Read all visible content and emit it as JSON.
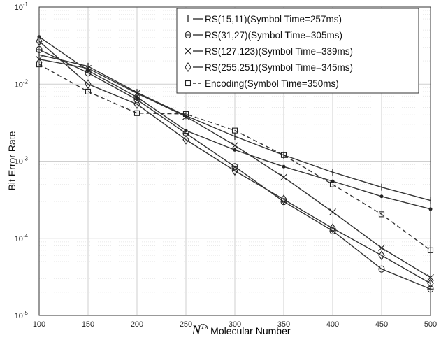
{
  "chart_data": {
    "type": "line",
    "title": "",
    "xlabel_symbol": "N",
    "xlabel_superscript": "Tx",
    "xlabel": "Molecular Number",
    "ylabel": "Bit Error Rate",
    "xlim": [
      100,
      500
    ],
    "ylim": [
      1e-05,
      0.1
    ],
    "yscale": "log",
    "grid": true,
    "legend_position": "top-right",
    "x_ticks": [
      100,
      150,
      200,
      250,
      300,
      350,
      400,
      450,
      500
    ],
    "y_tick_labels": [
      {
        "base": "10",
        "exp": "-1",
        "value": 0.1
      },
      {
        "base": "10",
        "exp": "-2",
        "value": 0.01
      },
      {
        "base": "10",
        "exp": "-3",
        "value": 0.001
      },
      {
        "base": "10",
        "exp": "-4",
        "value": 0.0001
      },
      {
        "base": "10",
        "exp": "-5",
        "value": 1e-05
      }
    ],
    "x": [
      100,
      150,
      200,
      250,
      300,
      350,
      400,
      450,
      500
    ],
    "series": [
      {
        "name": "RS(15,11)(Symbol Time=257ms)",
        "marker": "|",
        "dashed": false,
        "values": [
          0.024,
          0.017,
          0.0078,
          0.0039,
          0.0021,
          0.0012,
          0.00072,
          0.00046,
          0.00031
        ]
      },
      {
        "name": "RS(31,27)(Symbol Time=305ms)",
        "marker": "θ",
        "dashed": false,
        "values": [
          0.028,
          0.014,
          0.0063,
          0.0023,
          0.00085,
          0.0003,
          0.000125,
          4e-05,
          2.2e-05
        ]
      },
      {
        "name": "RS(127,123)(Symbol Time=339ms)",
        "marker": "x",
        "dashed": false,
        "values": [
          0.021,
          0.016,
          0.0076,
          0.0038,
          0.0016,
          0.00062,
          0.00022,
          7.5e-05,
          3.1e-05
        ]
      },
      {
        "name": "RS(255,251)(Symbol Time=345ms)",
        "marker": "◊",
        "dashed": false,
        "values": [
          0.036,
          0.01,
          0.0055,
          0.0019,
          0.00075,
          0.00032,
          0.000135,
          6e-05,
          2.6e-05
        ]
      },
      {
        "name": "Encoding(Symbol Time=350ms)",
        "marker": "□",
        "dashed": true,
        "values": [
          0.018,
          0.008,
          0.0042,
          0.0041,
          0.0025,
          0.0012,
          0.0005,
          0.000205,
          7e-05
        ]
      }
    ],
    "series_extra": [
      {
        "name": "RS(15,11)(Symbol Time=257ms)",
        "values": [
          0.041,
          0.015,
          0.0068,
          0.0025,
          0.0014,
          0.00085,
          0.00055,
          0.00035,
          0.00024
        ]
      }
    ]
  }
}
